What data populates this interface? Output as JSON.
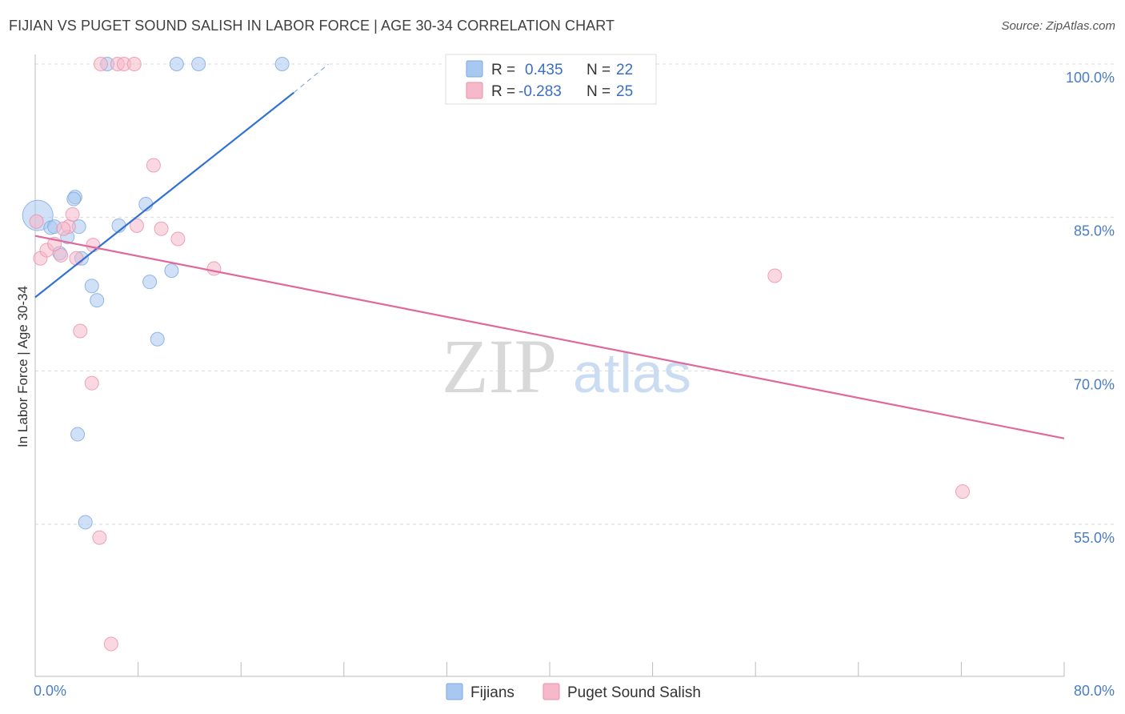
{
  "title": "FIJIAN VS PUGET SOUND SALISH IN LABOR FORCE | AGE 30-34 CORRELATION CHART",
  "source": "Source: ZipAtlas.com",
  "watermark": {
    "zip": "ZIP",
    "atlas": "atlas"
  },
  "colors": {
    "fijians_fill": "#a9c8f0",
    "fijians_stroke": "#7aa6e0",
    "fijians_line": "#2f72d4",
    "salish_fill": "#f6b8cb",
    "salish_stroke": "#eb8fab",
    "salish_line": "#e0689a",
    "tick_label": "#4a7cc4",
    "grid": "#d9d9d9"
  },
  "legend": {
    "rows": [
      {
        "r_label": "R =",
        "r_value": "0.435",
        "n_label": "N =",
        "n_value": "22"
      },
      {
        "r_label": "R =",
        "r_value": "-0.283",
        "n_label": "N =",
        "n_value": "25"
      }
    ]
  },
  "bottom_legend": [
    "Fijians",
    "Puget Sound Salish"
  ],
  "chart_data": {
    "type": "scatter",
    "title": "FIJIAN VS PUGET SOUND SALISH IN LABOR FORCE | AGE 30-34 CORRELATION CHART",
    "xlabel": "",
    "ylabel": "In Labor Force | Age 30-34",
    "xlim": [
      0,
      80
    ],
    "ylim": [
      41,
      101.5
    ],
    "x_tick_labels": [
      "0.0%",
      "80.0%"
    ],
    "y_ticks": [
      55,
      70,
      85,
      100
    ],
    "y_tick_labels": [
      "55.0%",
      "70.0%",
      "85.0%",
      "100.0%"
    ],
    "grid": "horizontal dashed",
    "legend_placement": "top-center",
    "series": [
      {
        "name": "Fijians",
        "points": [
          [
            0.2,
            85.2
          ],
          [
            1.2,
            84.0
          ],
          [
            1.5,
            84.1
          ],
          [
            1.9,
            81.5
          ],
          [
            2.5,
            83.1
          ],
          [
            3.1,
            87.0
          ],
          [
            3.4,
            84.1
          ],
          [
            3.6,
            81.0
          ],
          [
            4.4,
            78.3
          ],
          [
            4.8,
            76.9
          ],
          [
            5.6,
            100.0
          ],
          [
            6.5,
            84.2
          ],
          [
            8.6,
            86.3
          ],
          [
            8.9,
            78.7
          ],
          [
            9.5,
            73.1
          ],
          [
            10.6,
            79.8
          ],
          [
            11.0,
            100.0
          ],
          [
            12.7,
            100.0
          ],
          [
            19.2,
            100.0
          ],
          [
            3.3,
            63.8
          ],
          [
            3.9,
            55.2
          ],
          [
            3.0,
            86.8
          ]
        ],
        "trend": {
          "x0": 0,
          "y0": 77.2,
          "x1": 20.1,
          "y1": 97.2,
          "dash_to_x": 22.8,
          "dash_to_y": 100.0
        }
      },
      {
        "name": "Puget Sound Salish",
        "points": [
          [
            0.4,
            81.0
          ],
          [
            0.9,
            81.8
          ],
          [
            1.5,
            82.4
          ],
          [
            2.0,
            81.3
          ],
          [
            2.6,
            84.1
          ],
          [
            2.9,
            85.3
          ],
          [
            3.2,
            81.0
          ],
          [
            4.5,
            82.3
          ],
          [
            3.5,
            73.9
          ],
          [
            4.4,
            68.8
          ],
          [
            5.0,
            53.7
          ],
          [
            5.9,
            43.3
          ],
          [
            5.1,
            100.0
          ],
          [
            6.4,
            100.0
          ],
          [
            6.9,
            100.0
          ],
          [
            7.7,
            100.0
          ],
          [
            7.9,
            84.2
          ],
          [
            9.2,
            90.1
          ],
          [
            9.8,
            83.9
          ],
          [
            11.1,
            82.9
          ],
          [
            13.9,
            80.0
          ],
          [
            57.5,
            79.3
          ],
          [
            72.1,
            58.2
          ],
          [
            0.1,
            84.6
          ],
          [
            2.2,
            83.9
          ]
        ],
        "trend": {
          "x0": 0,
          "y0": 83.2,
          "x1": 80,
          "y1": 63.4
        }
      }
    ]
  }
}
